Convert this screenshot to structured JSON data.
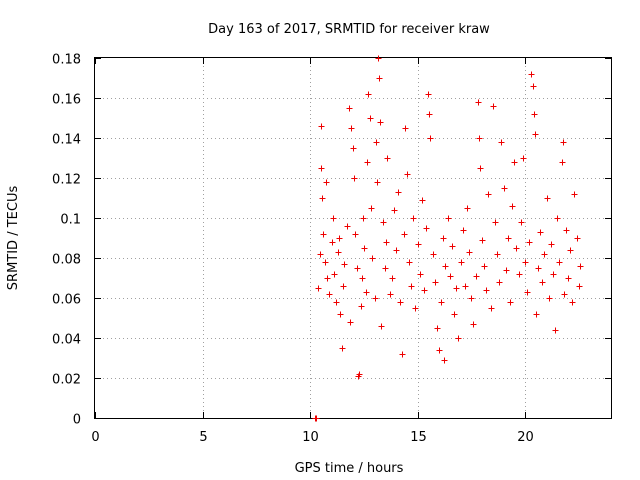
{
  "chart_data": {
    "type": "scatter",
    "title": "Day 163 of 2017, SRMTID for receiver kraw",
    "xlabel": "GPS time / hours",
    "ylabel": "SRMTID / TECUs",
    "xlim": [
      0,
      24
    ],
    "ylim": [
      0,
      0.18
    ],
    "xticks": [
      0,
      5,
      10,
      15,
      20
    ],
    "yticks": [
      0,
      0.02,
      0.04,
      0.06,
      0.08,
      0.1,
      0.12,
      0.14,
      0.16,
      0.18
    ],
    "ytick_labels": [
      "0",
      "0.02",
      "0.04",
      "0.06",
      "0.08",
      "0.1",
      "0.12",
      "0.14",
      "0.16",
      "0.18"
    ],
    "grid": true,
    "marker": "plus",
    "color": "#ee0000",
    "series": [
      {
        "name": "SRMTID kraw",
        "points": [
          [
            10.25,
            0.0
          ],
          [
            10.3,
            0.0
          ],
          [
            10.35,
            0.065
          ],
          [
            10.45,
            0.082
          ],
          [
            10.5,
            0.146
          ],
          [
            10.5,
            0.125
          ],
          [
            10.55,
            0.11
          ],
          [
            10.6,
            0.092
          ],
          [
            10.7,
            0.078
          ],
          [
            10.75,
            0.118
          ],
          [
            10.8,
            0.07
          ],
          [
            10.9,
            0.062
          ],
          [
            11.0,
            0.088
          ],
          [
            11.05,
            0.1
          ],
          [
            11.1,
            0.072
          ],
          [
            11.2,
            0.058
          ],
          [
            11.3,
            0.083
          ],
          [
            11.35,
            0.09
          ],
          [
            11.4,
            0.052
          ],
          [
            11.5,
            0.035
          ],
          [
            11.55,
            0.066
          ],
          [
            11.6,
            0.077
          ],
          [
            11.7,
            0.096
          ],
          [
            11.8,
            0.155
          ],
          [
            11.85,
            0.048
          ],
          [
            11.9,
            0.145
          ],
          [
            12.0,
            0.135
          ],
          [
            12.05,
            0.12
          ],
          [
            12.1,
            0.092
          ],
          [
            12.2,
            0.075
          ],
          [
            12.25,
            0.021
          ],
          [
            12.3,
            0.022
          ],
          [
            12.35,
            0.056
          ],
          [
            12.4,
            0.07
          ],
          [
            12.45,
            0.1
          ],
          [
            12.5,
            0.085
          ],
          [
            12.6,
            0.063
          ],
          [
            12.65,
            0.128
          ],
          [
            12.7,
            0.162
          ],
          [
            12.8,
            0.15
          ],
          [
            12.85,
            0.105
          ],
          [
            12.9,
            0.08
          ],
          [
            13.0,
            0.06
          ],
          [
            13.05,
            0.138
          ],
          [
            13.1,
            0.118
          ],
          [
            13.15,
            0.18
          ],
          [
            13.2,
            0.17
          ],
          [
            13.25,
            0.148
          ],
          [
            13.3,
            0.046
          ],
          [
            13.4,
            0.098
          ],
          [
            13.5,
            0.075
          ],
          [
            13.55,
            0.088
          ],
          [
            13.6,
            0.13
          ],
          [
            13.7,
            0.062
          ],
          [
            13.8,
            0.07
          ],
          [
            13.9,
            0.104
          ],
          [
            14.0,
            0.084
          ],
          [
            14.1,
            0.113
          ],
          [
            14.2,
            0.058
          ],
          [
            14.3,
            0.032
          ],
          [
            14.35,
            0.092
          ],
          [
            14.4,
            0.145
          ],
          [
            14.5,
            0.122
          ],
          [
            14.6,
            0.078
          ],
          [
            14.7,
            0.066
          ],
          [
            14.8,
            0.1
          ],
          [
            14.9,
            0.055
          ],
          [
            15.0,
            0.087
          ],
          [
            15.1,
            0.072
          ],
          [
            15.2,
            0.109
          ],
          [
            15.3,
            0.064
          ],
          [
            15.4,
            0.095
          ],
          [
            15.5,
            0.162
          ],
          [
            15.55,
            0.152
          ],
          [
            15.6,
            0.14
          ],
          [
            15.7,
            0.082
          ],
          [
            15.8,
            0.068
          ],
          [
            15.9,
            0.045
          ],
          [
            16.0,
            0.034
          ],
          [
            16.1,
            0.058
          ],
          [
            16.2,
            0.09
          ],
          [
            16.25,
            0.029
          ],
          [
            16.3,
            0.076
          ],
          [
            16.4,
            0.1
          ],
          [
            16.5,
            0.071
          ],
          [
            16.6,
            0.086
          ],
          [
            16.7,
            0.052
          ],
          [
            16.8,
            0.065
          ],
          [
            16.9,
            0.04
          ],
          [
            17.0,
            0.078
          ],
          [
            17.1,
            0.094
          ],
          [
            17.2,
            0.066
          ],
          [
            17.3,
            0.105
          ],
          [
            17.4,
            0.083
          ],
          [
            17.5,
            0.06
          ],
          [
            17.6,
            0.047
          ],
          [
            17.7,
            0.071
          ],
          [
            17.8,
            0.158
          ],
          [
            17.85,
            0.14
          ],
          [
            17.9,
            0.125
          ],
          [
            18.0,
            0.089
          ],
          [
            18.1,
            0.076
          ],
          [
            18.2,
            0.064
          ],
          [
            18.3,
            0.112
          ],
          [
            18.4,
            0.055
          ],
          [
            18.5,
            0.156
          ],
          [
            18.6,
            0.098
          ],
          [
            18.7,
            0.082
          ],
          [
            18.8,
            0.068
          ],
          [
            18.9,
            0.138
          ],
          [
            19.0,
            0.115
          ],
          [
            19.1,
            0.074
          ],
          [
            19.2,
            0.09
          ],
          [
            19.3,
            0.058
          ],
          [
            19.4,
            0.106
          ],
          [
            19.5,
            0.128
          ],
          [
            19.6,
            0.085
          ],
          [
            19.7,
            0.072
          ],
          [
            19.8,
            0.098
          ],
          [
            19.9,
            0.13
          ],
          [
            20.0,
            0.078
          ],
          [
            20.1,
            0.063
          ],
          [
            20.2,
            0.088
          ],
          [
            20.3,
            0.172
          ],
          [
            20.35,
            0.166
          ],
          [
            20.4,
            0.152
          ],
          [
            20.45,
            0.142
          ],
          [
            20.5,
            0.052
          ],
          [
            20.6,
            0.075
          ],
          [
            20.7,
            0.093
          ],
          [
            20.8,
            0.068
          ],
          [
            20.9,
            0.082
          ],
          [
            21.0,
            0.11
          ],
          [
            21.1,
            0.06
          ],
          [
            21.2,
            0.087
          ],
          [
            21.3,
            0.072
          ],
          [
            21.4,
            0.044
          ],
          [
            21.5,
            0.1
          ],
          [
            21.6,
            0.078
          ],
          [
            21.7,
            0.128
          ],
          [
            21.75,
            0.138
          ],
          [
            21.8,
            0.062
          ],
          [
            21.9,
            0.094
          ],
          [
            22.0,
            0.07
          ],
          [
            22.1,
            0.084
          ],
          [
            22.2,
            0.058
          ],
          [
            22.3,
            0.112
          ],
          [
            22.4,
            0.09
          ],
          [
            22.5,
            0.066
          ],
          [
            22.55,
            0.076
          ]
        ]
      }
    ]
  }
}
